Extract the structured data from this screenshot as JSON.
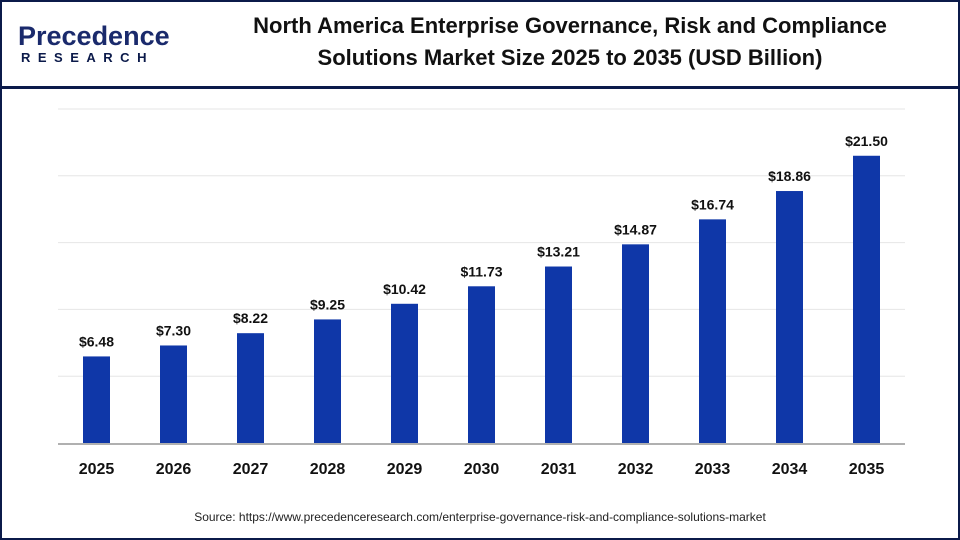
{
  "brand": {
    "name_top": "Precedence",
    "name_bottom": "RESEARCH"
  },
  "colors": {
    "bar": "#0f37a8",
    "frame": "#0b1a4a",
    "grid": "#e6e6e6",
    "axis": "#b0b0b0"
  },
  "source": "Source: https://www.precedenceresearch.com/enterprise-governance-risk-and-compliance-solutions-market",
  "chart_data": {
    "type": "bar",
    "title": "North America Enterprise Governance, Risk and Compliance Solutions Market Size 2025 to 2035 (USD Billion)",
    "title_line1": "North America Enterprise Governance, Risk and Compliance",
    "title_line2": "Solutions Market Size 2025 to 2035 (USD Billion)",
    "categories": [
      "2025",
      "2026",
      "2027",
      "2028",
      "2029",
      "2030",
      "2031",
      "2032",
      "2033",
      "2034",
      "2035"
    ],
    "values": [
      6.48,
      7.3,
      8.22,
      9.25,
      10.42,
      11.73,
      13.21,
      14.87,
      16.74,
      18.86,
      21.5
    ],
    "data_labels": [
      "$6.48",
      "$7.30",
      "$8.22",
      "$9.25",
      "$10.42",
      "$11.73",
      "$13.21",
      "$14.87",
      "$16.74",
      "$18.86",
      "$21.50"
    ],
    "ylim": [
      0,
      25
    ],
    "grid": true,
    "y_ticks_shown": false,
    "xlabel": "",
    "ylabel": ""
  }
}
